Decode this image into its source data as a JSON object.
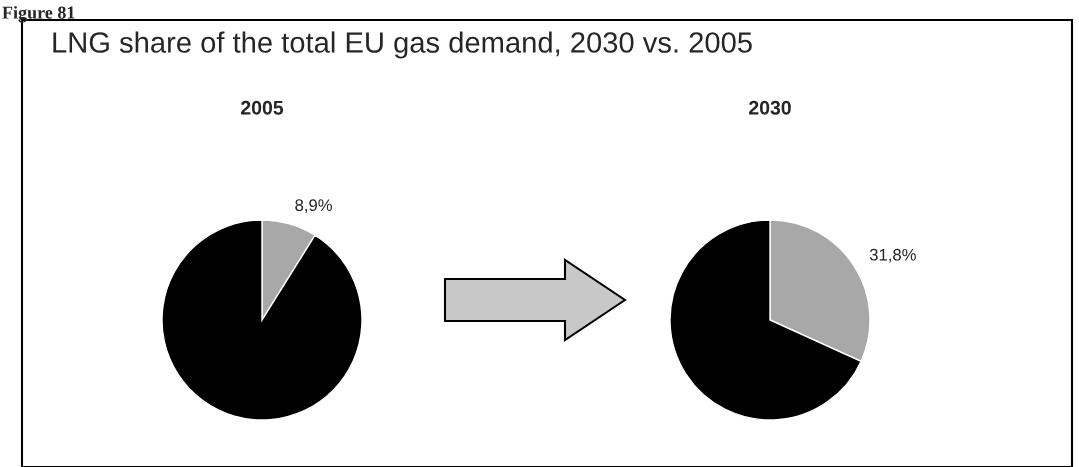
{
  "chart_data": [
    {
      "type": "pie",
      "title": "2005",
      "annotations": [
        "Figure 81",
        "LNG share of the total EU gas demand, 2030 vs. 2005"
      ],
      "categories": [
        null,
        null
      ],
      "values": [
        8.9,
        91.1
      ],
      "colors": [
        "#a8a8a8",
        "#000000"
      ],
      "value_labels": [
        "8,9%",
        null
      ],
      "legend": false
    },
    {
      "type": "pie",
      "title": "2030",
      "categories": [
        null,
        null
      ],
      "values": [
        31.8,
        68.2
      ],
      "colors": [
        "#a8a8a8",
        "#000000"
      ],
      "value_labels": [
        "31,8%",
        null
      ],
      "legend": false
    }
  ]
}
